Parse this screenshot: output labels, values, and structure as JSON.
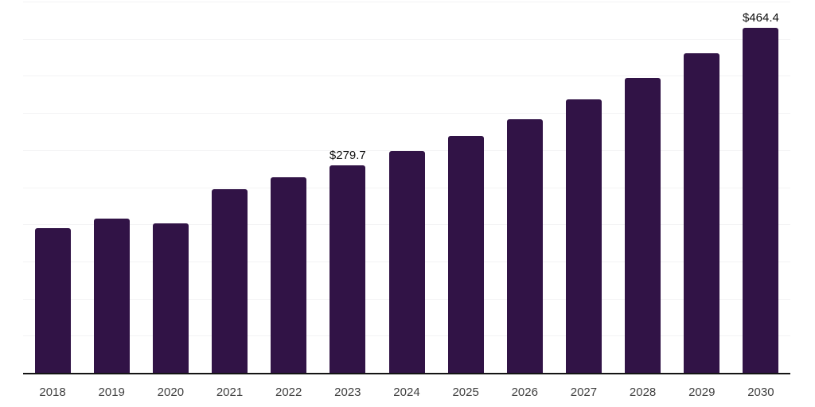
{
  "chart_data": {
    "type": "bar",
    "title": "",
    "xlabel": "",
    "ylabel": "",
    "categories": [
      "2018",
      "2019",
      "2020",
      "2021",
      "2022",
      "2023",
      "2024",
      "2025",
      "2026",
      "2027",
      "2028",
      "2029",
      "2030"
    ],
    "values": [
      194.5,
      208.0,
      201.5,
      247.5,
      263.0,
      279.7,
      298.5,
      319.0,
      341.5,
      368.0,
      397.0,
      430.0,
      464.4
    ],
    "value_labels": {
      "2023": "$279.7",
      "2030": "$464.4"
    },
    "ylim": [
      0,
      500
    ],
    "gridline_step": 50,
    "gridline_count": 10,
    "grid": "horizontal",
    "legend": "none",
    "colors": {
      "bar": "#311346",
      "grid_line": "#f3f3f4",
      "axis_line": "#141414",
      "tick_label": "#3f3f3f",
      "value_label": "#101010",
      "background": "#ffffff"
    }
  }
}
